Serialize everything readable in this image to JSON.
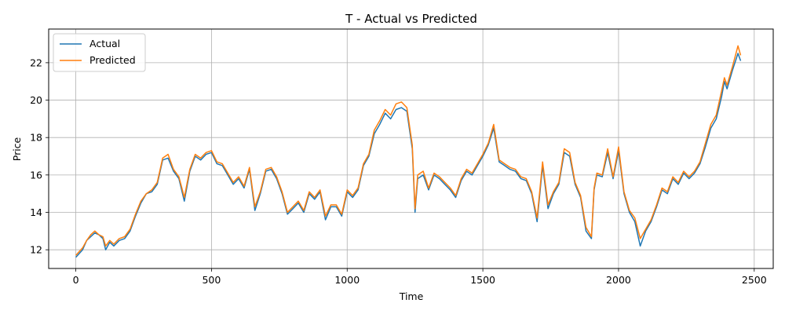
{
  "chart_data": {
    "type": "line",
    "title": "T - Actual vs Predicted",
    "xlabel": "Time",
    "ylabel": "Price",
    "xlim": [
      -100,
      2570
    ],
    "ylim": [
      11.0,
      23.8
    ],
    "xticks": [
      0,
      500,
      1000,
      1500,
      2000,
      2500
    ],
    "yticks": [
      12,
      14,
      16,
      18,
      20,
      22
    ],
    "grid": true,
    "legend_position": "top-left",
    "series": [
      {
        "name": "Actual",
        "color": "#1f77b4",
        "x": [
          0,
          25,
          40,
          55,
          70,
          85,
          100,
          110,
          125,
          140,
          160,
          180,
          200,
          220,
          240,
          260,
          280,
          300,
          320,
          340,
          360,
          380,
          400,
          420,
          440,
          460,
          480,
          500,
          520,
          540,
          560,
          580,
          600,
          620,
          640,
          660,
          680,
          700,
          720,
          740,
          760,
          780,
          800,
          820,
          840,
          860,
          880,
          900,
          920,
          940,
          960,
          980,
          1000,
          1020,
          1040,
          1060,
          1080,
          1100,
          1120,
          1140,
          1160,
          1180,
          1200,
          1220,
          1240,
          1250,
          1260,
          1280,
          1300,
          1320,
          1340,
          1360,
          1380,
          1400,
          1420,
          1440,
          1460,
          1480,
          1500,
          1520,
          1540,
          1560,
          1580,
          1600,
          1620,
          1640,
          1660,
          1680,
          1700,
          1720,
          1740,
          1760,
          1780,
          1800,
          1820,
          1840,
          1860,
          1880,
          1900,
          1910,
          1920,
          1940,
          1960,
          1980,
          2000,
          2020,
          2040,
          2060,
          2080,
          2100,
          2120,
          2140,
          2160,
          2180,
          2200,
          2220,
          2240,
          2260,
          2280,
          2300,
          2320,
          2340,
          2360,
          2380,
          2390,
          2400,
          2420,
          2440,
          2450
        ],
        "values": [
          11.6,
          12.0,
          12.5,
          12.7,
          12.9,
          12.8,
          12.6,
          12.0,
          12.4,
          12.2,
          12.5,
          12.6,
          13.0,
          13.8,
          14.5,
          15.0,
          15.1,
          15.5,
          16.8,
          16.9,
          16.2,
          15.8,
          14.6,
          16.2,
          17.0,
          16.8,
          17.1,
          17.2,
          16.6,
          16.5,
          16.0,
          15.5,
          15.8,
          15.3,
          16.3,
          14.1,
          15.0,
          16.2,
          16.3,
          15.8,
          15.0,
          13.9,
          14.2,
          14.5,
          14.0,
          15.0,
          14.7,
          15.1,
          13.6,
          14.3,
          14.3,
          13.8,
          15.1,
          14.8,
          15.2,
          16.5,
          17.0,
          18.2,
          18.7,
          19.3,
          19.0,
          19.5,
          19.6,
          19.4,
          17.4,
          14.0,
          15.8,
          16.0,
          15.2,
          16.0,
          15.8,
          15.5,
          15.2,
          14.8,
          15.7,
          16.2,
          16.0,
          16.5,
          17.0,
          17.6,
          18.5,
          16.7,
          16.5,
          16.3,
          16.2,
          15.8,
          15.7,
          15.0,
          13.5,
          16.5,
          14.2,
          15.0,
          15.5,
          17.2,
          17.0,
          15.5,
          14.8,
          13.0,
          12.6,
          15.2,
          16.0,
          15.9,
          17.2,
          15.8,
          17.3,
          15.0,
          14.0,
          13.5,
          12.2,
          13.0,
          13.5,
          14.3,
          15.2,
          15.0,
          15.8,
          15.5,
          16.1,
          15.8,
          16.1,
          16.6,
          17.5,
          18.5,
          19.0,
          20.2,
          21.0,
          20.6,
          21.6,
          22.5,
          22.1
        ]
      },
      {
        "name": "Predicted",
        "color": "#ff7f0e",
        "x": [
          0,
          25,
          40,
          55,
          70,
          85,
          100,
          110,
          125,
          140,
          160,
          180,
          200,
          220,
          240,
          260,
          280,
          300,
          320,
          340,
          360,
          380,
          400,
          420,
          440,
          460,
          480,
          500,
          520,
          540,
          560,
          580,
          600,
          620,
          640,
          660,
          680,
          700,
          720,
          740,
          760,
          780,
          800,
          820,
          840,
          860,
          880,
          900,
          920,
          940,
          960,
          980,
          1000,
          1020,
          1040,
          1060,
          1080,
          1100,
          1120,
          1140,
          1160,
          1180,
          1200,
          1220,
          1240,
          1250,
          1260,
          1280,
          1300,
          1320,
          1340,
          1360,
          1380,
          1400,
          1420,
          1440,
          1460,
          1480,
          1500,
          1520,
          1540,
          1560,
          1580,
          1600,
          1620,
          1640,
          1660,
          1680,
          1700,
          1720,
          1740,
          1760,
          1780,
          1800,
          1820,
          1840,
          1860,
          1880,
          1900,
          1910,
          1920,
          1940,
          1960,
          1980,
          2000,
          2020,
          2040,
          2060,
          2080,
          2100,
          2120,
          2140,
          2160,
          2180,
          2200,
          2220,
          2240,
          2260,
          2280,
          2300,
          2320,
          2340,
          2360,
          2380,
          2390,
          2400,
          2420,
          2440,
          2450
        ],
        "values": [
          11.7,
          12.1,
          12.5,
          12.8,
          13.0,
          12.8,
          12.7,
          12.2,
          12.5,
          12.3,
          12.6,
          12.7,
          13.1,
          13.9,
          14.6,
          15.0,
          15.2,
          15.6,
          16.9,
          17.1,
          16.3,
          15.9,
          14.8,
          16.3,
          17.1,
          16.9,
          17.2,
          17.3,
          16.7,
          16.6,
          16.1,
          15.6,
          15.9,
          15.4,
          16.4,
          14.3,
          15.1,
          16.3,
          16.4,
          15.9,
          15.1,
          14.0,
          14.3,
          14.6,
          14.1,
          15.1,
          14.8,
          15.2,
          13.8,
          14.4,
          14.4,
          13.9,
          15.2,
          14.9,
          15.3,
          16.6,
          17.1,
          18.4,
          18.9,
          19.5,
          19.2,
          19.8,
          19.9,
          19.6,
          17.6,
          14.2,
          16.0,
          16.2,
          15.3,
          16.1,
          15.9,
          15.6,
          15.3,
          14.9,
          15.8,
          16.3,
          16.1,
          16.6,
          17.1,
          17.7,
          18.7,
          16.8,
          16.6,
          16.4,
          16.3,
          15.9,
          15.8,
          15.1,
          13.7,
          16.7,
          14.4,
          15.1,
          15.6,
          17.4,
          17.2,
          15.6,
          14.9,
          13.2,
          12.7,
          15.3,
          16.1,
          16.0,
          17.4,
          15.9,
          17.5,
          15.1,
          14.1,
          13.7,
          12.6,
          13.1,
          13.6,
          14.4,
          15.3,
          15.1,
          15.9,
          15.6,
          16.2,
          15.9,
          16.2,
          16.7,
          17.7,
          18.7,
          19.2,
          20.5,
          21.2,
          20.8,
          21.8,
          22.9,
          22.4
        ]
      }
    ]
  }
}
